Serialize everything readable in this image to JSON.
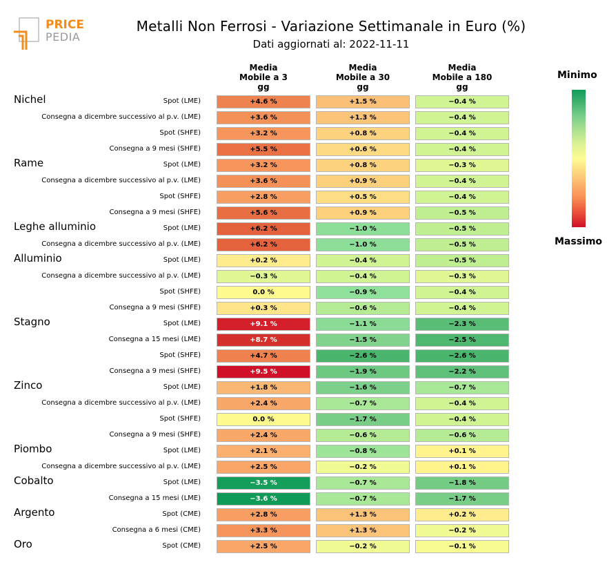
{
  "header": {
    "title": "Metalli Non Ferrosi - Variazione Settimanale in Euro (%)",
    "subtitle": "Dati aggiornati al: 2022-11-11",
    "logo_line1": "PRICE",
    "logo_line2": "PEDIA"
  },
  "columns": [
    {
      "l1": "Media",
      "l2": "Mobile a 3",
      "l3": "gg"
    },
    {
      "l1": "Media",
      "l2": "Mobile a 30",
      "l3": "gg"
    },
    {
      "l1": "Media",
      "l2": "Mobile a 180",
      "l3": "gg"
    }
  ],
  "legend": {
    "min_label": "Minimo",
    "max_label": "Massimo",
    "colors": [
      "#0f9a58",
      "#7dd08a",
      "#d7ef95",
      "#fdfc94",
      "#fdce7b",
      "#f99057",
      "#e94b35",
      "#cf1028"
    ]
  },
  "chart_data": {
    "type": "heatmap",
    "title": "Metalli Non Ferrosi - Variazione Settimanale in Euro (%)",
    "subtitle": "Dati aggiornati al: 2022-11-11",
    "columns": [
      "Media Mobile a 3 gg",
      "Media Mobile a 30 gg",
      "Media Mobile a 180 gg"
    ],
    "unit": "%",
    "groups": [
      {
        "name": "Nichel",
        "rows": [
          {
            "label": "Spot (LME)",
            "values": [
              4.6,
              1.5,
              -0.4
            ]
          },
          {
            "label": "Consegna a dicembre successivo al p.v. (LME)",
            "values": [
              3.6,
              1.3,
              -0.4
            ]
          },
          {
            "label": "Spot (SHFE)",
            "values": [
              3.2,
              0.8,
              -0.4
            ]
          },
          {
            "label": "Consegna a 9 mesi (SHFE)",
            "values": [
              5.5,
              0.6,
              -0.4
            ]
          }
        ]
      },
      {
        "name": "Rame",
        "rows": [
          {
            "label": "Spot (LME)",
            "values": [
              3.2,
              0.8,
              -0.3
            ]
          },
          {
            "label": "Consegna a dicembre successivo al p.v. (LME)",
            "values": [
              3.6,
              0.9,
              -0.4
            ]
          },
          {
            "label": "Spot (SHFE)",
            "values": [
              2.8,
              0.5,
              -0.4
            ]
          },
          {
            "label": "Consegna a 9 mesi (SHFE)",
            "values": [
              5.6,
              0.9,
              -0.5
            ]
          }
        ]
      },
      {
        "name": "Leghe alluminio",
        "rows": [
          {
            "label": "Spot (LME)",
            "values": [
              6.2,
              -1.0,
              -0.5
            ]
          },
          {
            "label": "Consegna a dicembre successivo al p.v. (LME)",
            "values": [
              6.2,
              -1.0,
              -0.5
            ]
          }
        ]
      },
      {
        "name": "Alluminio",
        "rows": [
          {
            "label": "Spot (LME)",
            "values": [
              0.2,
              -0.4,
              -0.5
            ]
          },
          {
            "label": "Consegna a dicembre successivo al p.v. (LME)",
            "values": [
              -0.3,
              -0.4,
              -0.3
            ]
          },
          {
            "label": "Spot (SHFE)",
            "values": [
              0.0,
              -0.9,
              -0.4
            ]
          },
          {
            "label": "Consegna a 9 mesi (SHFE)",
            "values": [
              0.3,
              -0.6,
              -0.4
            ]
          }
        ]
      },
      {
        "name": "Stagno",
        "rows": [
          {
            "label": "Spot (LME)",
            "values": [
              9.1,
              -1.1,
              -2.3
            ]
          },
          {
            "label": "Consegna a 15 mesi (LME)",
            "values": [
              8.7,
              -1.5,
              -2.5
            ]
          },
          {
            "label": "Spot (SHFE)",
            "values": [
              4.7,
              -2.6,
              -2.6
            ]
          },
          {
            "label": "Consegna a 9 mesi (SHFE)",
            "values": [
              9.5,
              -1.9,
              -2.2
            ]
          }
        ]
      },
      {
        "name": "Zinco",
        "rows": [
          {
            "label": "Spot (LME)",
            "values": [
              1.8,
              -1.6,
              -0.7
            ]
          },
          {
            "label": "Consegna a dicembre successivo al p.v. (LME)",
            "values": [
              2.4,
              -0.7,
              -0.4
            ]
          },
          {
            "label": "Spot (SHFE)",
            "values": [
              0.0,
              -1.7,
              -0.4
            ]
          },
          {
            "label": "Consegna a 9 mesi (SHFE)",
            "values": [
              2.4,
              -0.6,
              -0.6
            ]
          }
        ]
      },
      {
        "name": "Piombo",
        "rows": [
          {
            "label": "Spot (LME)",
            "values": [
              2.1,
              -0.8,
              0.1
            ]
          },
          {
            "label": "Consegna a dicembre successivo al p.v. (LME)",
            "values": [
              2.5,
              -0.2,
              0.1
            ]
          }
        ]
      },
      {
        "name": "Cobalto",
        "rows": [
          {
            "label": "Spot (LME)",
            "values": [
              -3.5,
              -0.7,
              -1.8
            ]
          },
          {
            "label": "Consegna a 15 mesi (LME)",
            "values": [
              -3.6,
              -0.7,
              -1.7
            ]
          }
        ]
      },
      {
        "name": "Argento",
        "rows": [
          {
            "label": "Spot (CME)",
            "values": [
              2.8,
              1.3,
              0.2
            ]
          },
          {
            "label": "Consegna a 6 mesi (CME)",
            "values": [
              3.3,
              1.3,
              -0.2
            ]
          }
        ]
      },
      {
        "name": "Oro",
        "rows": [
          {
            "label": "Spot (CME)",
            "values": [
              2.5,
              -0.2,
              -0.1
            ]
          }
        ]
      }
    ]
  }
}
